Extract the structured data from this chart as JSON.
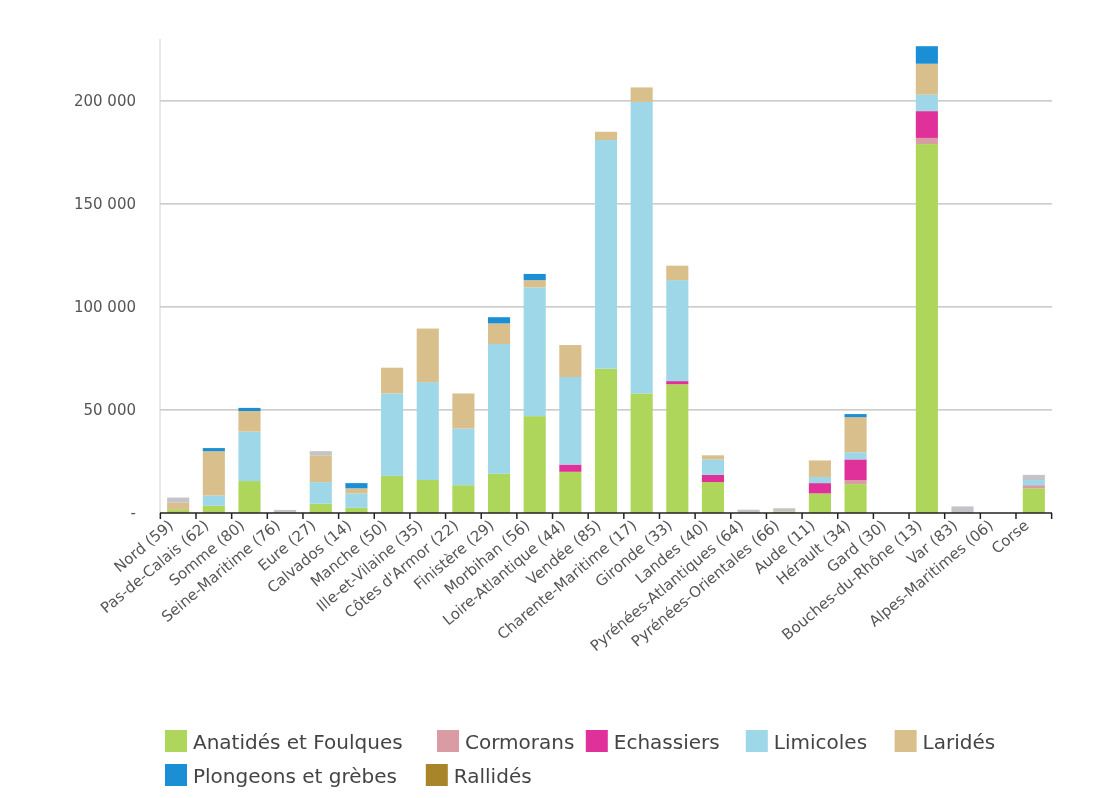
{
  "chart_data": {
    "type": "bar",
    "stacked": true,
    "categories": [
      "Nord (59)",
      "Pas-de-Calais (62)",
      "Somme (80)",
      "Seine-Maritime (76)",
      "Eure (27)",
      "Calvados (14)",
      "Manche (50)",
      "Ille-et-Vilaine (35)",
      "Côtes d'Armor (22)",
      "Finistère (29)",
      "Morbihan (56)",
      "Loire-Atlantique (44)",
      "Vendée (85)",
      "Charente-Maritime (17)",
      "Gironde (33)",
      "Landes (40)",
      "Pyrénées-Atlantiques (64)",
      "Pyrénées-Orientales (66)",
      "Aude (11)",
      "Hérault (34)",
      "Gard (30)",
      "Bouches-du-Rhône (13)",
      "Var (83)",
      "Alpes-Maritimes (06)",
      "Corse"
    ],
    "series": [
      {
        "name": "Anatidés et Foulques",
        "color": "#aed65a",
        "values": [
          1500,
          3500,
          15500,
          0,
          4500,
          2500,
          18000,
          16000,
          13500,
          19000,
          47000,
          20000,
          70000,
          58000,
          62500,
          15000,
          0,
          800,
          9500,
          14000,
          0,
          179000,
          0,
          0,
          12000
        ]
      },
      {
        "name": "Cormorans",
        "color": "#d99ca4",
        "values": [
          0,
          0,
          0,
          0,
          0,
          0,
          0,
          0,
          0,
          0,
          0,
          0,
          0,
          0,
          0,
          0,
          0,
          0,
          0,
          2000,
          0,
          3000,
          0,
          0,
          1500
        ]
      },
      {
        "name": "Echassiers",
        "color": "#e0309a",
        "values": [
          0,
          0,
          0,
          0,
          0,
          0,
          0,
          0,
          0,
          0,
          0,
          3500,
          0,
          0,
          1500,
          3500,
          0,
          0,
          5000,
          10000,
          0,
          13000,
          0,
          0,
          0
        ]
      },
      {
        "name": "Limicoles",
        "color": "#9ed8e8",
        "values": [
          0,
          5000,
          24000,
          0,
          10500,
          7000,
          40000,
          47500,
          27500,
          63000,
          62500,
          42500,
          111000,
          141500,
          49000,
          7500,
          0,
          0,
          3000,
          3500,
          0,
          8000,
          0,
          0,
          2500
        ]
      },
      {
        "name": "Laridés",
        "color": "#d9bf8c",
        "values": [
          3500,
          21500,
          10000,
          0,
          13000,
          2500,
          12500,
          26000,
          17000,
          10000,
          3500,
          15500,
          4000,
          7000,
          7000,
          2000,
          0,
          0,
          8000,
          17000,
          0,
          15000,
          0,
          0,
          0
        ]
      },
      {
        "name": "Plongeons et grèbes",
        "color": "#1a8fd6",
        "values": [
          0,
          1500,
          1500,
          0,
          0,
          2500,
          0,
          0,
          0,
          3000,
          3000,
          0,
          0,
          0,
          0,
          0,
          0,
          0,
          0,
          1500,
          0,
          8500,
          0,
          0,
          0
        ]
      },
      {
        "name": "Rallidés",
        "color": "#a8852a",
        "values": [
          0,
          0,
          0,
          0,
          0,
          0,
          0,
          0,
          0,
          0,
          0,
          0,
          0,
          0,
          0,
          0,
          0,
          0,
          0,
          0,
          0,
          0,
          0,
          0,
          0
        ]
      },
      {
        "color": "#c4c4c8",
        "values": [
          2500,
          0,
          0,
          1500,
          2000,
          0,
          0,
          0,
          0,
          0,
          0,
          0,
          0,
          0,
          0,
          0,
          1600,
          1500,
          0,
          0,
          0,
          0,
          3200,
          0,
          2500
        ]
      }
    ],
    "ylim": [
      0,
      230000
    ],
    "yticks": [
      {
        "value": 0,
        "label": "-"
      },
      {
        "value": 50000,
        "label": "50 000"
      },
      {
        "value": 100000,
        "label": "100 000"
      },
      {
        "value": 150000,
        "label": "150 000"
      },
      {
        "value": 200000,
        "label": "200 000"
      }
    ],
    "grid": "y",
    "legend": "bottom"
  }
}
